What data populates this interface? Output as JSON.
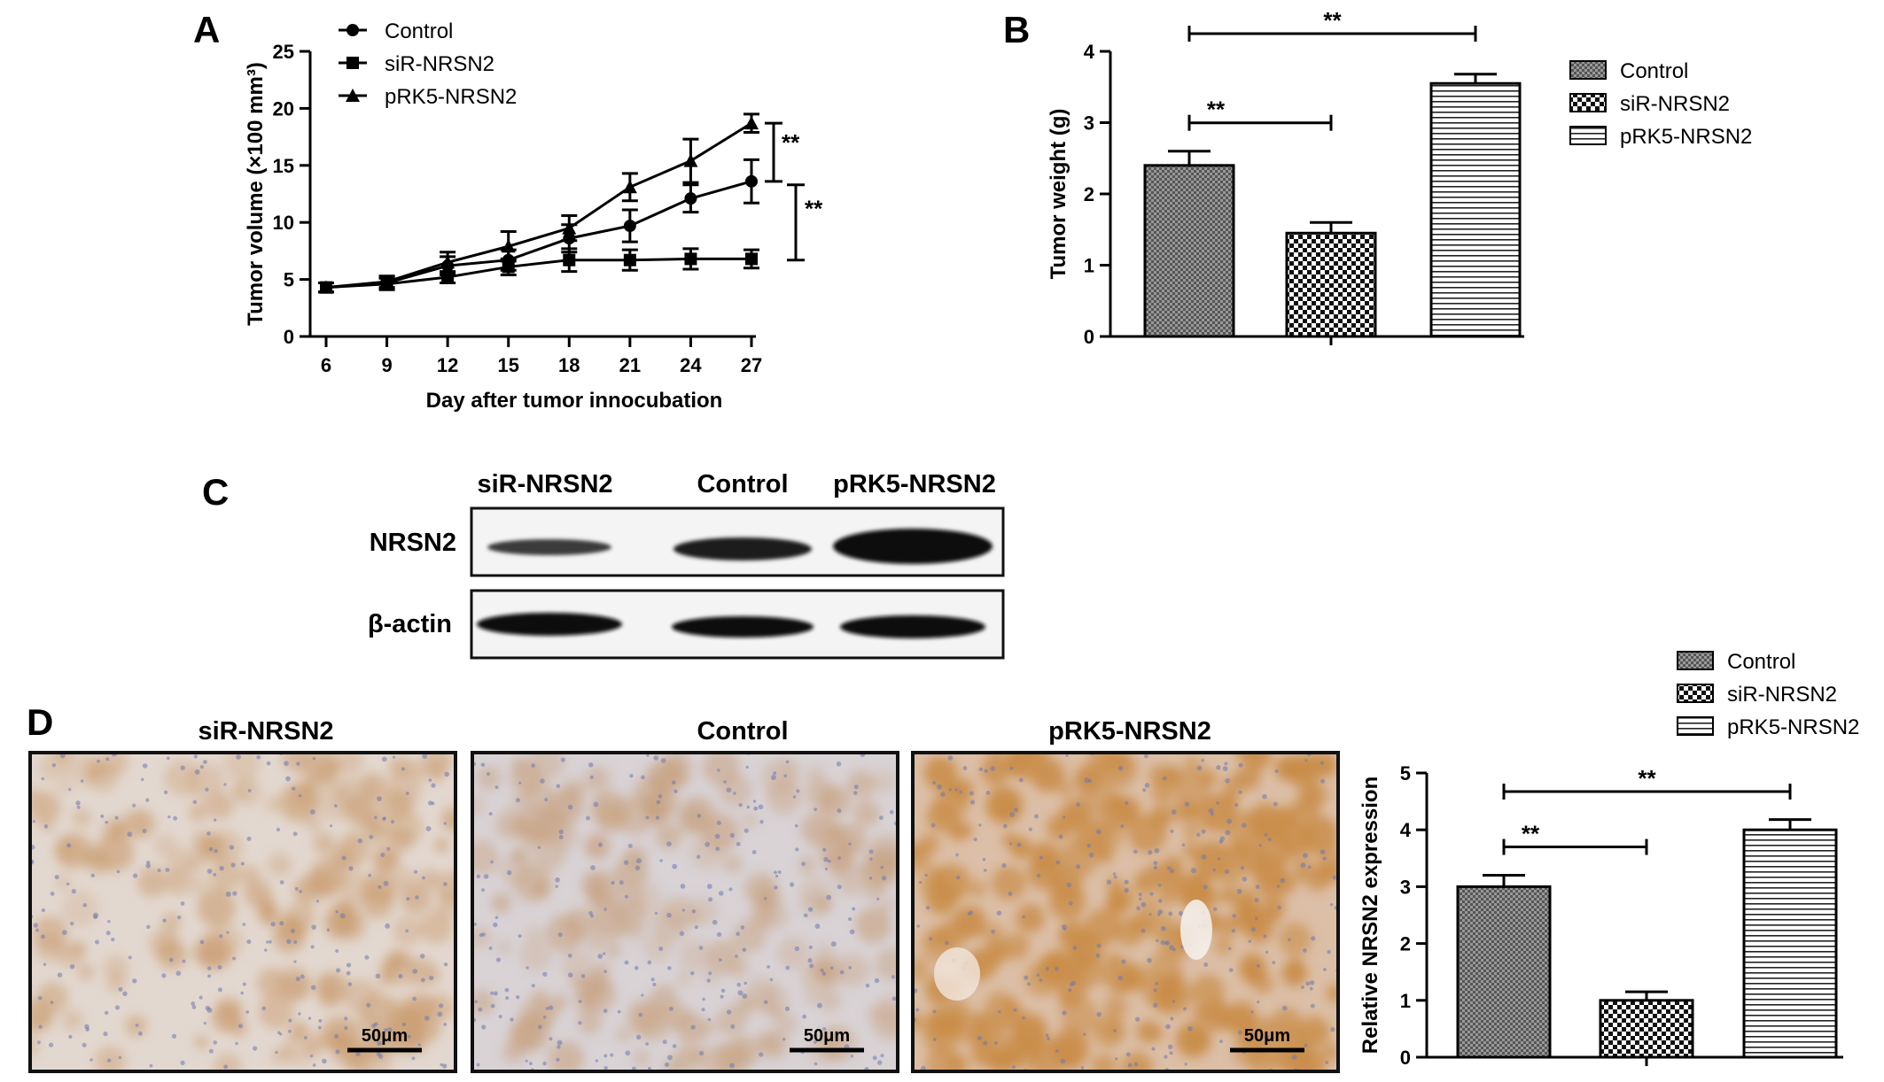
{
  "panels": {
    "a": "A",
    "b": "B",
    "c": "C",
    "d": "D"
  },
  "panel_c": {
    "lanes": [
      "siR-NRSN2",
      "Control",
      "pRK5-NRSN2"
    ],
    "rows": [
      "NRSN2",
      "β-actin"
    ]
  },
  "panel_d": {
    "images": [
      "siR-NRSN2",
      "Control",
      "pRK5-NRSN2"
    ],
    "scale_bar": "50μm",
    "stain_colors": [
      "#c99a6c",
      "#c7a07d",
      "#c98c47"
    ],
    "background_colors": [
      "#e3d8d0",
      "#d9d3d6",
      "#dcbfa7"
    ]
  },
  "chart_data": [
    {
      "type": "line",
      "xlabel": "Day after tumor innocubation",
      "ylabel": "Tumor volume (×100 mm³)",
      "x": [
        6,
        9,
        12,
        15,
        18,
        21,
        24,
        27
      ],
      "xticks": [
        "6",
        "9",
        "12",
        "15",
        "18",
        "21",
        "24",
        "27"
      ],
      "ylim": [
        0,
        25
      ],
      "yticks": [
        "0",
        "5",
        "10",
        "15",
        "20",
        "25"
      ],
      "legend": "top-left",
      "series": [
        {
          "name": "Control",
          "marker": "circle",
          "values": [
            4.3,
            4.7,
            6.2,
            6.7,
            8.6,
            9.7,
            12.1,
            13.6
          ],
          "errors": [
            0.4,
            0.5,
            0.8,
            0.9,
            1.2,
            1.4,
            1.2,
            1.9
          ]
        },
        {
          "name": "siR-NRSN2",
          "marker": "square",
          "values": [
            4.3,
            4.6,
            5.2,
            6.1,
            6.7,
            6.7,
            6.8,
            6.8
          ],
          "errors": [
            0.4,
            0.5,
            0.5,
            0.7,
            1.0,
            0.9,
            0.9,
            0.8
          ]
        },
        {
          "name": "pRK5-NRSN2",
          "marker": "triangle",
          "values": [
            4.3,
            4.8,
            6.5,
            7.9,
            9.5,
            13.1,
            15.4,
            18.7
          ],
          "errors": [
            0.4,
            0.5,
            0.9,
            1.3,
            1.1,
            1.2,
            1.9,
            0.8
          ]
        }
      ],
      "annotations": [
        {
          "text": "**",
          "between": [
            "Control",
            "pRK5-NRSN2"
          ]
        },
        {
          "text": "**",
          "between": [
            "siR-NRSN2",
            "Control"
          ]
        }
      ]
    },
    {
      "type": "bar",
      "ylabel": "Tumor weight (g)",
      "categories": [
        "Control",
        "siR-NRSN2",
        "pRK5-NRSN2"
      ],
      "values": [
        2.4,
        1.45,
        3.55
      ],
      "errors": [
        0.2,
        0.15,
        0.13
      ],
      "ylim": [
        0,
        4
      ],
      "yticks": [
        "0",
        "1",
        "2",
        "3",
        "4"
      ],
      "legend": "right",
      "annotations": [
        {
          "text": "**",
          "between": [
            "Control",
            "siR-NRSN2"
          ]
        },
        {
          "text": "**",
          "between": [
            "Control",
            "pRK5-NRSN2"
          ]
        }
      ]
    },
    {
      "type": "bar",
      "ylabel": "Relative NRSN2 expression",
      "categories": [
        "Control",
        "siR-NRSN2",
        "pRK5-NRSN2"
      ],
      "values": [
        3.0,
        1.0,
        4.0
      ],
      "errors": [
        0.2,
        0.15,
        0.18
      ],
      "ylim": [
        0,
        5
      ],
      "yticks": [
        "0",
        "1",
        "2",
        "3",
        "4",
        "5"
      ],
      "legend": "top-right",
      "annotations": [
        {
          "text": "**",
          "between": [
            "Control",
            "siR-NRSN2"
          ]
        },
        {
          "text": "**",
          "between": [
            "Control",
            "pRK5-NRSN2"
          ]
        }
      ]
    }
  ]
}
